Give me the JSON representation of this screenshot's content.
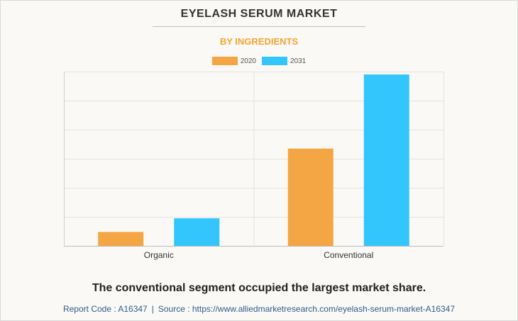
{
  "header": {
    "title": "EYELASH SERUM MARKET",
    "subtitle": "BY INGREDIENTS"
  },
  "colors": {
    "series_2020": "#f4a544",
    "series_2031": "#33c6fd",
    "subtitle": "#f4a533",
    "grid": "#e3e3e3"
  },
  "chart_data": {
    "type": "bar",
    "categories": [
      "Organic",
      "Conventional"
    ],
    "series": [
      {
        "name": "2020",
        "values": [
          0.48,
          3.35
        ]
      },
      {
        "name": "2031",
        "values": [
          0.95,
          5.9
        ]
      }
    ],
    "ylim": [
      0,
      6
    ],
    "grid": true,
    "legend": "top-center",
    "y_tick_labels_shown": false
  },
  "takeaway": "The conventional segment occupied the largest market share.",
  "footer": {
    "report_code": "Report Code : A16347",
    "separator": "|",
    "source": "Source : https://www.alliedmarketresearch.com/eyelash-serum-market-A16347"
  }
}
